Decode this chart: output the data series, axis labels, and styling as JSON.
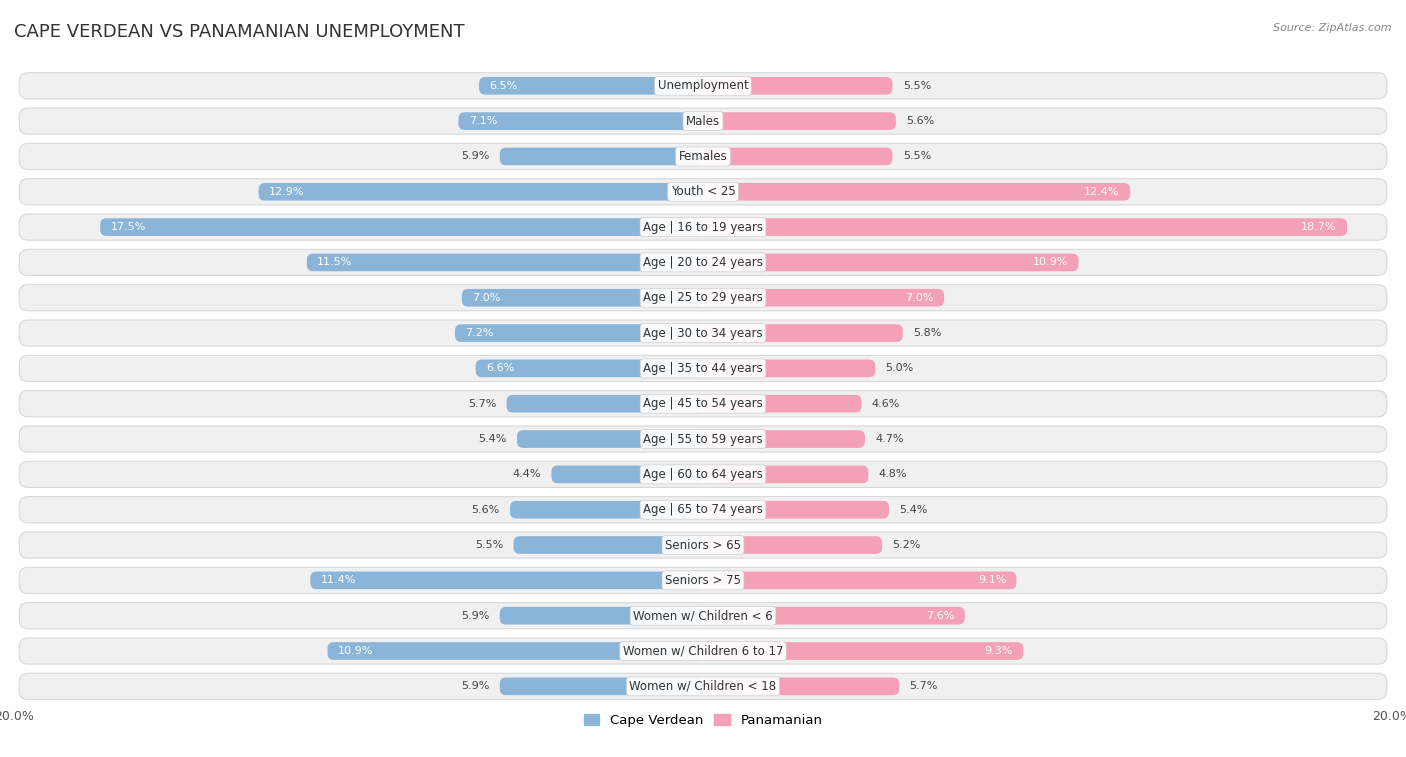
{
  "title": "Cape Verdean vs Panamanian Unemployment",
  "source": "Source: ZipAtlas.com",
  "categories": [
    "Unemployment",
    "Males",
    "Females",
    "Youth < 25",
    "Age | 16 to 19 years",
    "Age | 20 to 24 years",
    "Age | 25 to 29 years",
    "Age | 30 to 34 years",
    "Age | 35 to 44 years",
    "Age | 45 to 54 years",
    "Age | 55 to 59 years",
    "Age | 60 to 64 years",
    "Age | 65 to 74 years",
    "Seniors > 65",
    "Seniors > 75",
    "Women w/ Children < 6",
    "Women w/ Children 6 to 17",
    "Women w/ Children < 18"
  ],
  "cape_verdean": [
    6.5,
    7.1,
    5.9,
    12.9,
    17.5,
    11.5,
    7.0,
    7.2,
    6.6,
    5.7,
    5.4,
    4.4,
    5.6,
    5.5,
    11.4,
    5.9,
    10.9,
    5.9
  ],
  "panamanian": [
    5.5,
    5.6,
    5.5,
    12.4,
    18.7,
    10.9,
    7.0,
    5.8,
    5.0,
    4.6,
    4.7,
    4.8,
    5.4,
    5.2,
    9.1,
    7.6,
    9.3,
    5.7
  ],
  "max_val": 20.0,
  "cape_verdean_color": "#8ab4d8",
  "panamanian_color": "#f4a0b8",
  "cape_verdean_label": "Cape Verdean",
  "panamanian_label": "Panamanian",
  "row_bg": "#f0f0f0",
  "row_border": "#d8d8d8",
  "title_fontsize": 13,
  "label_fontsize": 8.5,
  "value_fontsize": 8.0,
  "legend_fontsize": 9.5,
  "inside_threshold": 6.0
}
